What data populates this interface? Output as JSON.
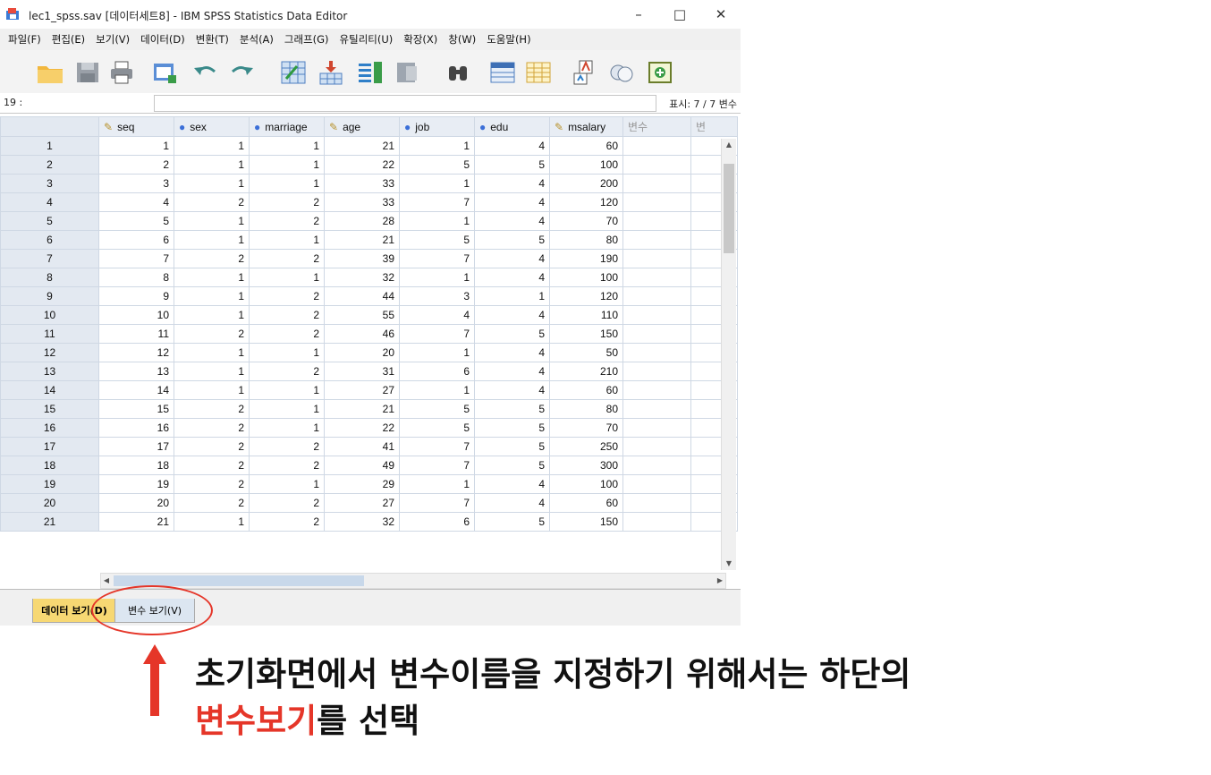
{
  "window": {
    "title": "lec1_spss.sav [데이터세트8] - IBM SPSS Statistics Data Editor",
    "minimize_glyph": "–",
    "maximize_glyph": "□",
    "close_glyph": "✕"
  },
  "menu": [
    "파일(F)",
    "편집(E)",
    "보기(V)",
    "데이터(D)",
    "변환(T)",
    "분석(A)",
    "그래프(G)",
    "유틸리티(U)",
    "확장(X)",
    "창(W)",
    "도움말(H)"
  ],
  "toolbar_icons": [
    "open-folder-icon",
    "save-icon",
    "print-icon",
    "dialog-recall-icon",
    "undo-icon",
    "redo-icon",
    "goto-case-icon",
    "goto-variable-icon",
    "variables-icon",
    "run-descriptives-icon",
    "find-icon",
    "insert-cases-icon",
    "insert-variable-icon",
    "split-file-icon",
    "value-labels-icon",
    "use-sets-icon"
  ],
  "cellbar": {
    "cell_ref": "19 :",
    "visible": "표시: 7 / 7 변수"
  },
  "columns": [
    {
      "name": "seq",
      "icon": "scale"
    },
    {
      "name": "sex",
      "icon": "nominal"
    },
    {
      "name": "marriage",
      "icon": "nominal"
    },
    {
      "name": "age",
      "icon": "scale"
    },
    {
      "name": "job",
      "icon": "nominal"
    },
    {
      "name": "edu",
      "icon": "nominal"
    },
    {
      "name": "msalary",
      "icon": "scale"
    },
    {
      "name": "변수",
      "icon": ""
    },
    {
      "name": "변",
      "icon": ""
    }
  ],
  "rows": [
    [
      "1",
      "1",
      "1",
      "1",
      "21",
      "1",
      "4",
      "60"
    ],
    [
      "2",
      "2",
      "1",
      "1",
      "22",
      "5",
      "5",
      "100"
    ],
    [
      "3",
      "3",
      "1",
      "1",
      "33",
      "1",
      "4",
      "200"
    ],
    [
      "4",
      "4",
      "2",
      "2",
      "33",
      "7",
      "4",
      "120"
    ],
    [
      "5",
      "5",
      "1",
      "2",
      "28",
      "1",
      "4",
      "70"
    ],
    [
      "6",
      "6",
      "1",
      "1",
      "21",
      "5",
      "5",
      "80"
    ],
    [
      "7",
      "7",
      "2",
      "2",
      "39",
      "7",
      "4",
      "190"
    ],
    [
      "8",
      "8",
      "1",
      "1",
      "32",
      "1",
      "4",
      "100"
    ],
    [
      "9",
      "9",
      "1",
      "2",
      "44",
      "3",
      "1",
      "120"
    ],
    [
      "10",
      "10",
      "1",
      "2",
      "55",
      "4",
      "4",
      "110"
    ],
    [
      "11",
      "11",
      "2",
      "2",
      "46",
      "7",
      "5",
      "150"
    ],
    [
      "12",
      "12",
      "1",
      "1",
      "20",
      "1",
      "4",
      "50"
    ],
    [
      "13",
      "13",
      "1",
      "2",
      "31",
      "6",
      "4",
      "210"
    ],
    [
      "14",
      "14",
      "1",
      "1",
      "27",
      "1",
      "4",
      "60"
    ],
    [
      "15",
      "15",
      "2",
      "1",
      "21",
      "5",
      "5",
      "80"
    ],
    [
      "16",
      "16",
      "2",
      "1",
      "22",
      "5",
      "5",
      "70"
    ],
    [
      "17",
      "17",
      "2",
      "2",
      "41",
      "7",
      "5",
      "250"
    ],
    [
      "18",
      "18",
      "2",
      "2",
      "49",
      "7",
      "5",
      "300"
    ],
    [
      "19",
      "19",
      "2",
      "1",
      "29",
      "1",
      "4",
      "100"
    ],
    [
      "20",
      "20",
      "2",
      "2",
      "27",
      "7",
      "4",
      "60"
    ],
    [
      "21",
      "21",
      "1",
      "2",
      "32",
      "6",
      "5",
      "150"
    ]
  ],
  "tabs": {
    "data_view": "데이터 보기(D)",
    "variable_view": "변수 보기(V)"
  },
  "caption": {
    "line1": "초기화면에서 변수이름을 지정하기 위해서는 하단의",
    "line2_highlight": "변수보기",
    "line2_rest": "를 선택"
  },
  "colors": {
    "accent_red": "#e53629",
    "active_tab": "#f7d873",
    "inactive_tab": "#dce6f1"
  }
}
